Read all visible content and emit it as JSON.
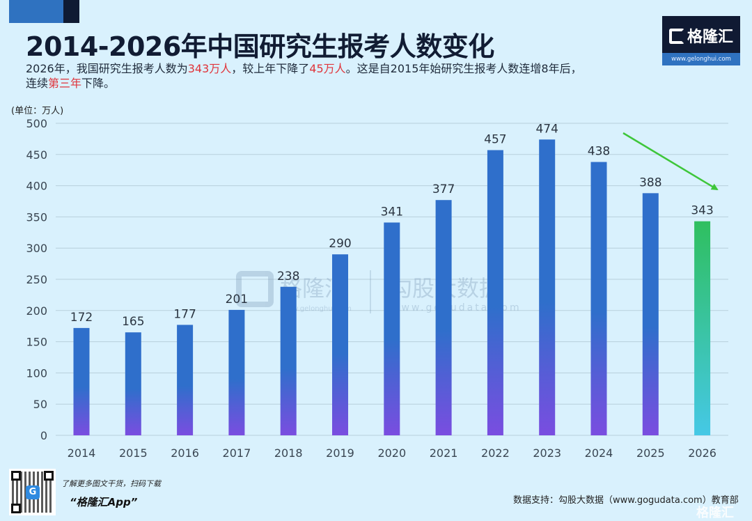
{
  "header": {
    "title": "2014-2026年中国研究生报考人数变化",
    "subtitle_parts": [
      {
        "text": "2026年，我国研究生报考人数为",
        "highlight": false
      },
      {
        "text": "343万人",
        "highlight": true
      },
      {
        "text": "，较上年下降了",
        "highlight": false
      },
      {
        "text": "45万人",
        "highlight": true
      },
      {
        "text": "。这是自2015年始研究生报考人数连增8年后，连续",
        "highlight": false
      },
      {
        "text": "第三年",
        "highlight": true
      },
      {
        "text": "下降。",
        "highlight": false
      }
    ],
    "unit_label": "(单位：万人)"
  },
  "logo": {
    "brand": "格隆汇",
    "url": "www.gelonghui.com"
  },
  "watermark": {
    "left_brand": "格隆汇",
    "left_url": "www.gelonghui.com",
    "right_brand": "勾股大数据",
    "right_url": "www.gogudata.com"
  },
  "colors": {
    "background": "#d9f1fd",
    "bar_top": "#2f6fcb",
    "bar_bottom": "#7a4de0",
    "highlight_bar_top": "#2fbf5f",
    "highlight_bar_bottom": "#45c8e6",
    "arrow": "#3ec63a",
    "highlight_text": "#e0343a",
    "grid": "#b8cfdc"
  },
  "chart_data": {
    "type": "bar",
    "title": "2014-2026年中国研究生报考人数变化",
    "xlabel": "",
    "ylabel": "(单位：万人)",
    "categories": [
      "2014",
      "2015",
      "2016",
      "2017",
      "2018",
      "2019",
      "2020",
      "2021",
      "2022",
      "2023",
      "2024",
      "2025",
      "2026"
    ],
    "values": [
      172,
      165,
      177,
      201,
      238,
      290,
      341,
      377,
      457,
      474,
      438,
      388,
      343
    ],
    "highlight_index": 12,
    "ylim": [
      0,
      500
    ],
    "yticks": [
      0,
      50,
      100,
      150,
      200,
      250,
      300,
      350,
      400,
      450,
      500
    ],
    "grid": true,
    "legend": "none",
    "annotations": [
      {
        "type": "arrow",
        "description": "downward trend arrow pointing toward 2026"
      }
    ]
  },
  "footer": {
    "promo_line1": "了解更多图文干货，扫码下载",
    "promo_line2": "“格隆汇App”",
    "source": "数据支持：勾股大数据（www.gogudata.com）教育部",
    "corner_brand": "格隆汇"
  }
}
